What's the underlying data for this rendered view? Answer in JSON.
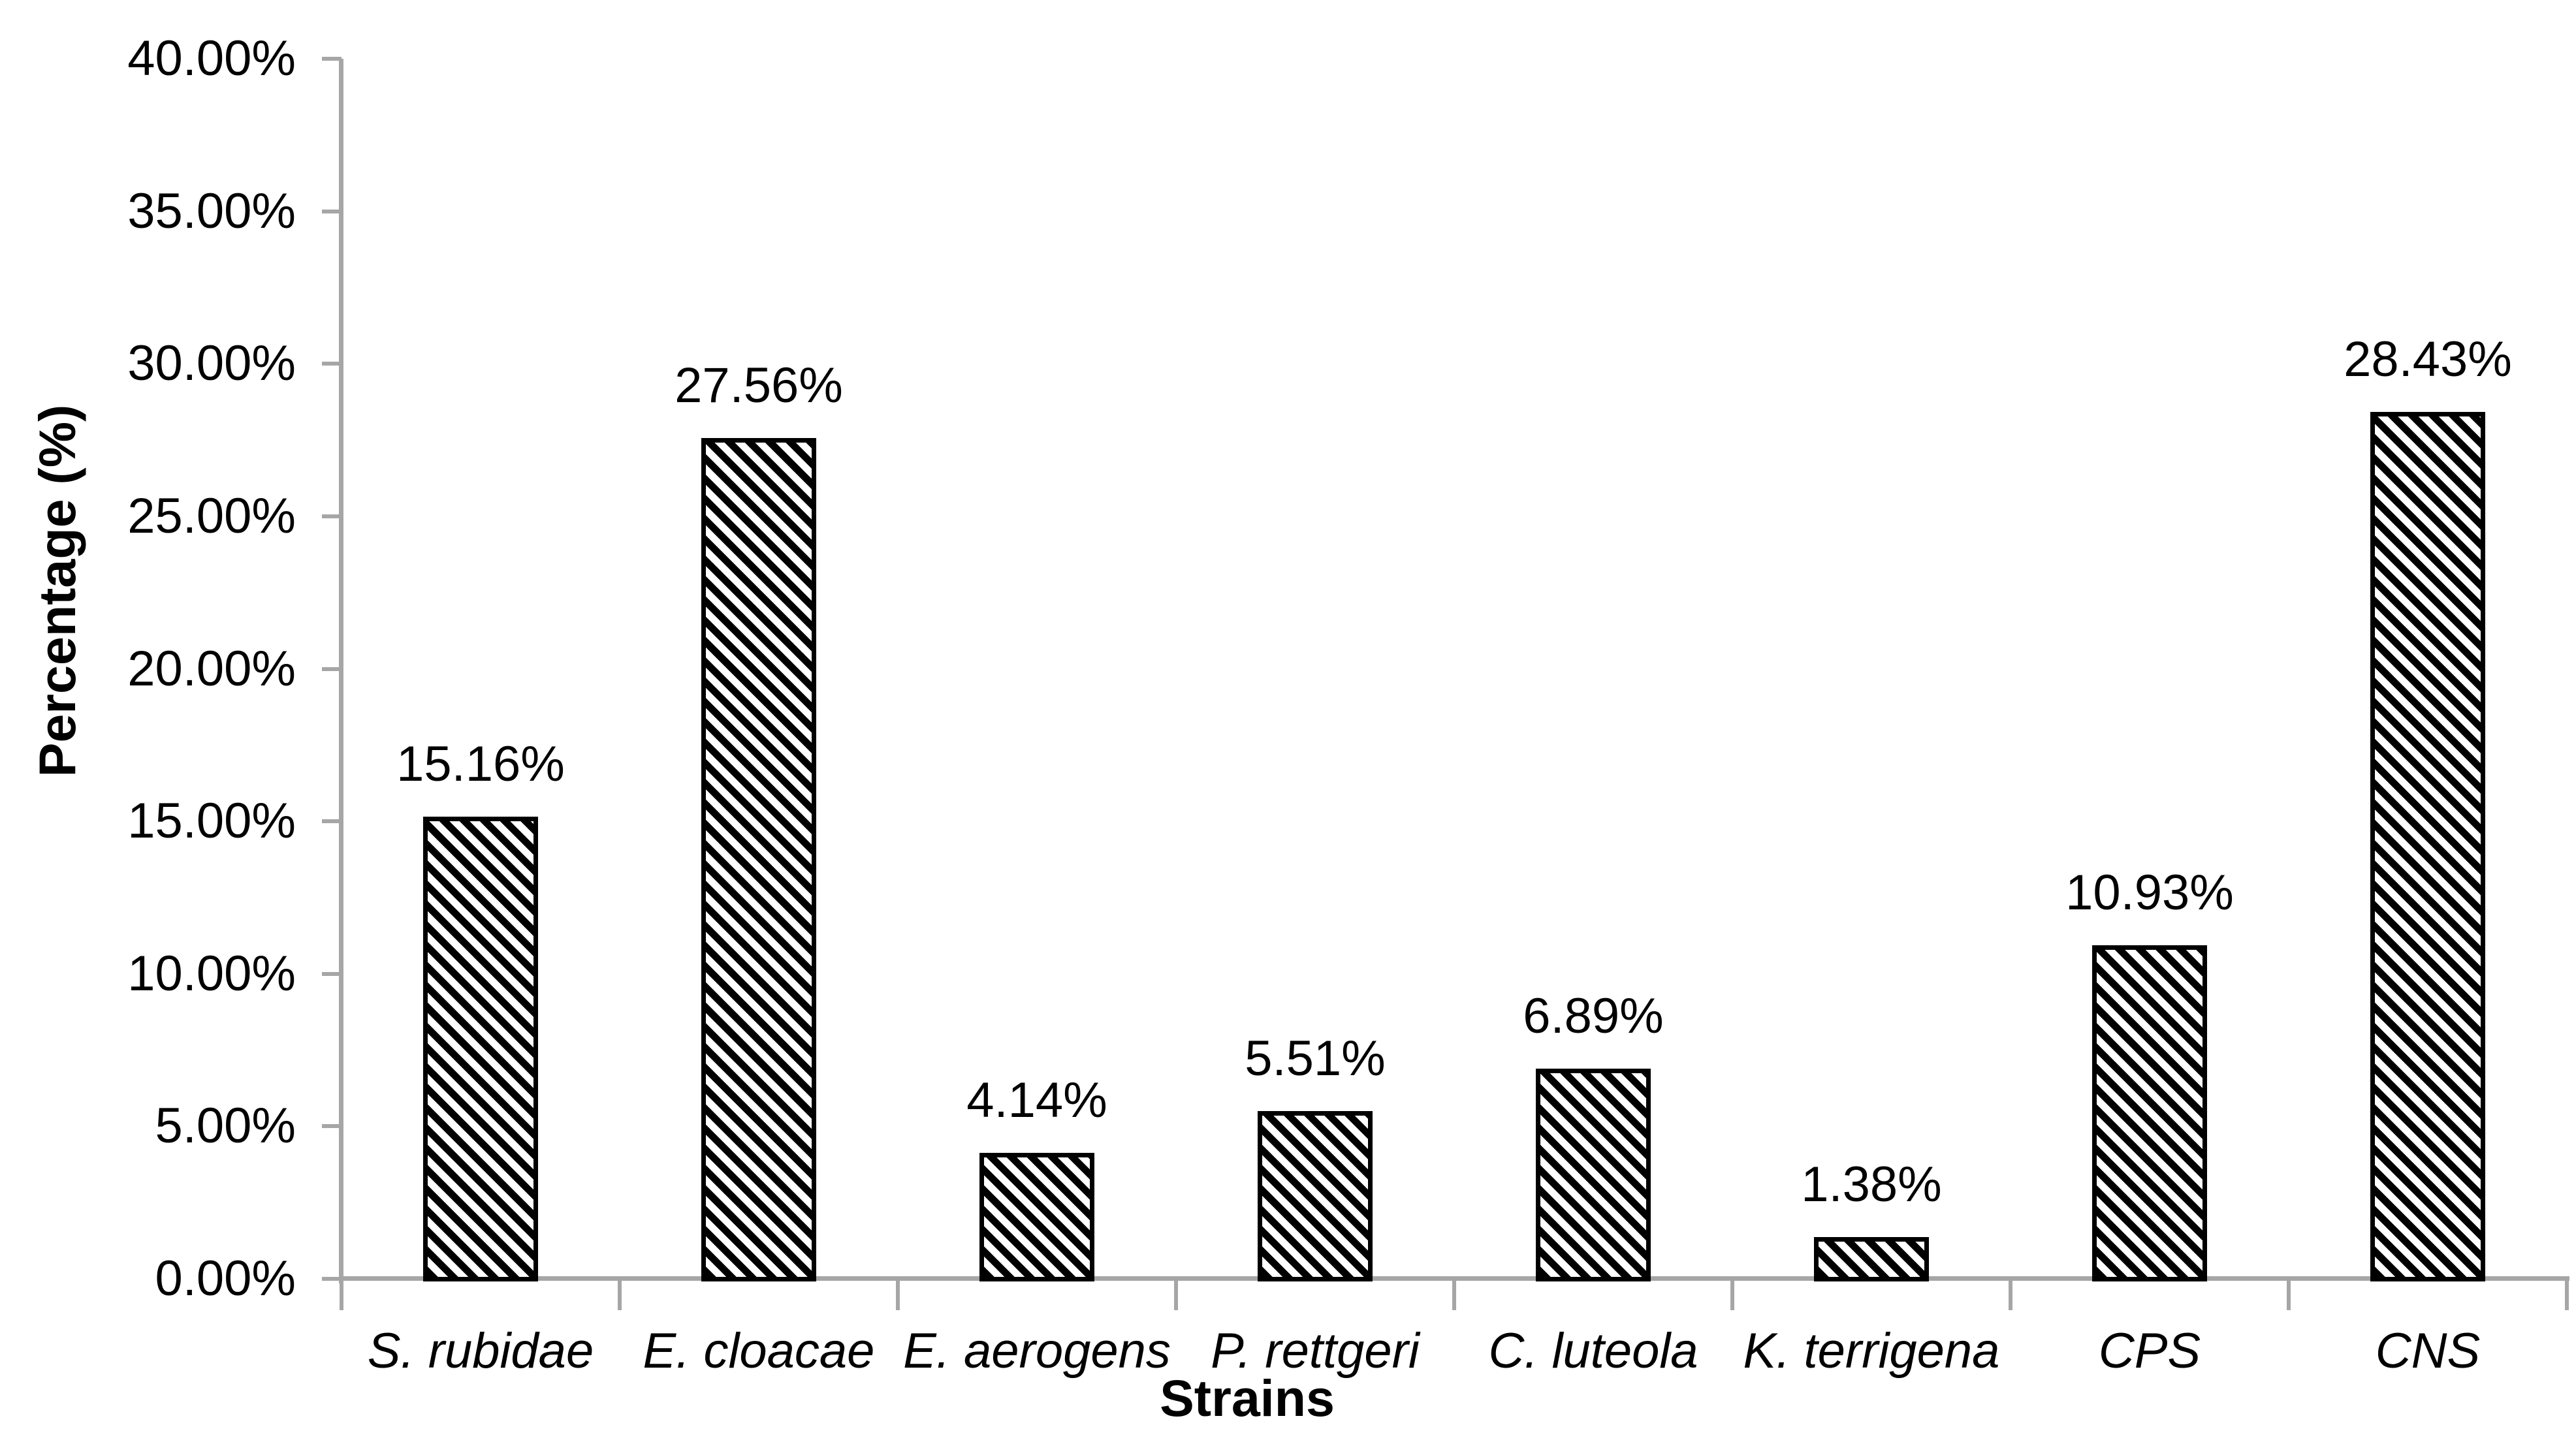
{
  "chart_data": {
    "type": "bar",
    "title": "",
    "xlabel": "Strains",
    "ylabel": "Percentage (%)",
    "categories": [
      "S. rubidae",
      "E. cloacae",
      "E. aerogens",
      "P. rettgeri",
      "C. luteola",
      "K. terrigena",
      "CPS",
      "CNS"
    ],
    "values": [
      15.16,
      27.56,
      4.14,
      5.51,
      6.89,
      1.38,
      10.93,
      28.43
    ],
    "data_labels": [
      "15.16%",
      "27.56%",
      "4.14%",
      "5.51%",
      "6.89%",
      "1.38%",
      "10.93%",
      "28.43%"
    ],
    "ylim": [
      0,
      40
    ],
    "ytick_step": 5,
    "ytick_labels": [
      "0.00%",
      "5.00%",
      "10.00%",
      "15.00%",
      "20.00%",
      "25.00%",
      "30.00%",
      "35.00%",
      "40.00%"
    ],
    "grid": false,
    "legend": "none",
    "category_label_style": "italic",
    "bar_fill": "#FFFFFF",
    "bar_hatch": "diagonal-backslash",
    "bar_hatch_color": "#000000",
    "bar_border_color": "#000000",
    "axis_color": "#A6A6A6",
    "text_color": "#000000"
  }
}
